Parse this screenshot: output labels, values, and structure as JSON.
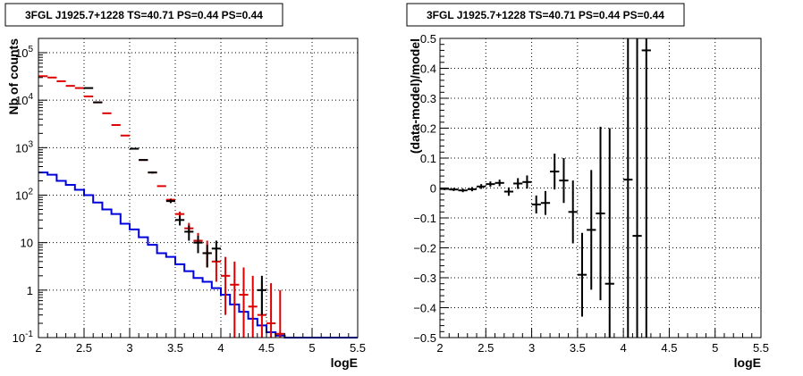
{
  "colors": {
    "data": "#000000",
    "model": "#dd0000",
    "source": "#0000dd"
  },
  "chart_data": [
    {
      "type": "line",
      "title": "3FGL J1925.7+1228 TS=40.71 PS=0.44 PS=0.44",
      "xlabel": "logE",
      "ylabel": "Nb of counts",
      "xlim": [
        2,
        5.5
      ],
      "ylim": [
        0.1,
        200000
      ],
      "yscale": "log",
      "grid": true,
      "x_ticks": [
        "2",
        "2.5",
        "3",
        "3.5",
        "4",
        "4.5",
        "5",
        "5.5"
      ],
      "y_ticks": [
        "10^-1",
        "1",
        "10",
        "10^2",
        "10^3",
        "10^4",
        "10^5"
      ],
      "bin_edges": [
        2.0,
        2.1,
        2.2,
        2.3,
        2.4,
        2.5,
        2.6,
        2.7,
        2.8,
        2.9,
        3.0,
        3.1,
        3.2,
        3.3,
        3.4,
        3.5,
        3.6,
        3.7,
        3.8,
        3.9,
        4.0,
        4.1,
        4.2,
        4.3,
        4.4,
        4.5,
        4.6,
        4.7,
        4.8,
        4.9,
        5.0,
        5.1,
        5.2,
        5.3,
        5.4,
        5.5
      ],
      "series": [
        {
          "role": "source",
          "style": "step",
          "values": [
            300,
            270,
            200,
            165,
            130,
            100,
            70,
            50,
            40,
            25,
            19,
            13,
            9,
            6,
            5,
            3.5,
            2.5,
            1.8,
            1.5,
            1.1,
            0.8,
            0.5,
            0.35,
            0.25,
            0.18,
            0.13,
            0.11,
            0.1,
            0.1,
            0.1,
            0.1,
            0.1,
            0.1,
            0.1,
            0.1
          ]
        },
        {
          "role": "model",
          "style": "points",
          "x": [
            2.05,
            2.15,
            2.25,
            2.35,
            2.45,
            2.55,
            2.65,
            2.75,
            2.85,
            2.95,
            3.05,
            3.15,
            3.25,
            3.35,
            3.45,
            3.55,
            3.65,
            3.75,
            3.85,
            3.95,
            4.05,
            4.15,
            4.25,
            4.35,
            4.45,
            4.55,
            4.65
          ],
          "y": [
            32000,
            30000,
            25000,
            20000,
            18000,
            12000,
            9000,
            5300,
            3000,
            1800,
            950,
            550,
            300,
            155,
            80,
            40,
            20,
            11,
            6,
            4,
            2,
            1.3,
            0.8,
            0.45,
            0.3,
            0.2,
            0.12
          ],
          "err_low": [
            31500,
            29500,
            24500,
            19600,
            17600,
            11800,
            8800,
            5200,
            2950,
            1770,
            930,
            540,
            290,
            150,
            75,
            35,
            16,
            7,
            3,
            1.5,
            0.3,
            0.1,
            0.1,
            0.1,
            0.1,
            0.1,
            0.1
          ],
          "err_high": [
            32500,
            30500,
            25500,
            20400,
            18400,
            12200,
            9200,
            5400,
            3050,
            1830,
            970,
            560,
            310,
            160,
            85,
            45,
            26,
            16,
            11,
            8,
            5,
            4,
            3,
            2,
            1.6,
            1.4,
            1.0
          ]
        },
        {
          "role": "data",
          "style": "points",
          "x": [
            2.55,
            2.65,
            3.05,
            3.15,
            3.25,
            3.45,
            3.55,
            3.65,
            3.75,
            3.85,
            3.95,
            4.45
          ],
          "y": [
            18000,
            9000,
            950,
            550,
            300,
            75,
            30,
            17,
            10,
            6,
            7.5,
            1.0
          ],
          "err_low": [
            17500,
            8800,
            920,
            530,
            285,
            68,
            23,
            11,
            6,
            3,
            4,
            0.3
          ],
          "err_high": [
            18500,
            9200,
            980,
            570,
            315,
            82,
            37,
            23,
            14,
            9,
            11,
            2
          ]
        }
      ]
    },
    {
      "type": "scatter",
      "title": "3FGL J1925.7+1228 TS=40.71 PS=0.44 PS=0.44",
      "xlabel": "logE",
      "ylabel": "(data-model)/model",
      "xlim": [
        2,
        5.5
      ],
      "ylim": [
        -0.5,
        0.5
      ],
      "grid": true,
      "x_ticks": [
        "2",
        "2.5",
        "3",
        "3.5",
        "4",
        "4.5",
        "5",
        "5.5"
      ],
      "y_ticks": [
        "−0.5",
        "−0.4",
        "−0.3",
        "−0.2",
        "−0.1",
        "0",
        "0.1",
        "0.2",
        "0.3",
        "0.4",
        "0.5"
      ],
      "series": [
        {
          "role": "data",
          "x": [
            2.05,
            2.15,
            2.25,
            2.35,
            2.45,
            2.55,
            2.65,
            2.75,
            2.85,
            2.95,
            3.05,
            3.15,
            3.25,
            3.35,
            3.45,
            3.55,
            3.65,
            3.75,
            3.85,
            4.05,
            4.15,
            4.25
          ],
          "y": [
            -0.003,
            -0.005,
            -0.008,
            -0.004,
            0.005,
            0.013,
            0.017,
            -0.012,
            0.015,
            0.02,
            -0.055,
            -0.05,
            0.055,
            0.025,
            -0.08,
            -0.29,
            -0.14,
            -0.085,
            -0.32,
            0.028,
            -0.16,
            0.46
          ],
          "err": [
            0.004,
            0.005,
            0.006,
            0.007,
            0.008,
            0.009,
            0.011,
            0.014,
            0.018,
            0.022,
            0.03,
            0.04,
            0.06,
            0.075,
            0.105,
            0.14,
            0.2,
            0.29,
            0.52,
            0.85,
            0.95,
            1.1
          ]
        }
      ]
    }
  ]
}
